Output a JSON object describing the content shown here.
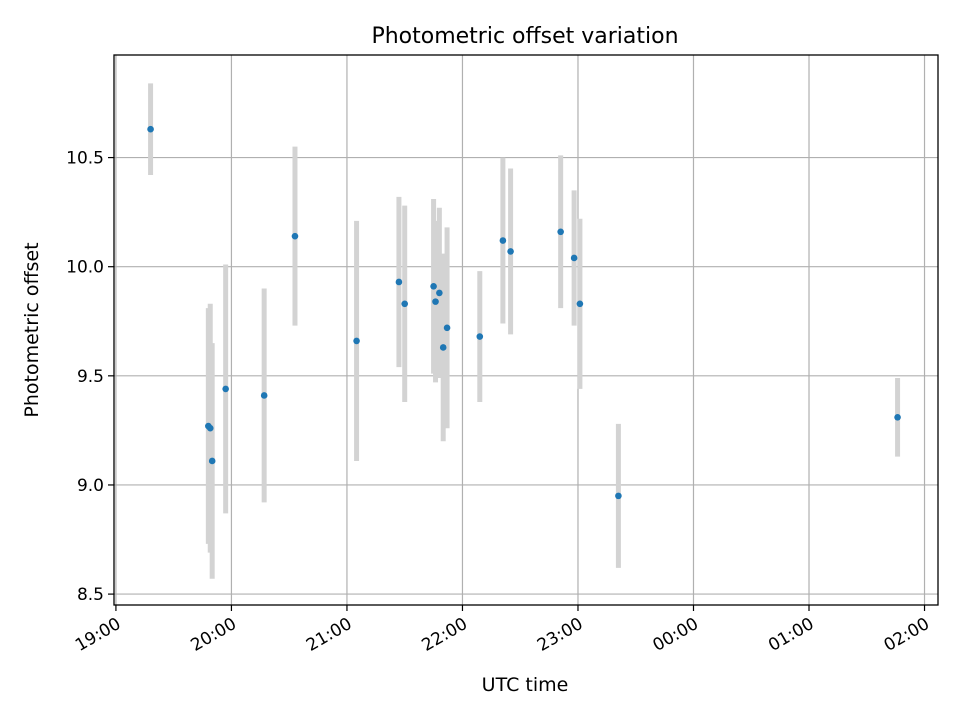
{
  "chart_data": {
    "type": "scatter",
    "title": "Photometric offset variation",
    "xlabel": "UTC time",
    "ylabel": "Photometric offset",
    "x_unit": "UTC time (HH:MM)",
    "xlim": [
      "18:59",
      "26:07"
    ],
    "ylim": [
      8.45,
      10.97
    ],
    "xticks": [
      {
        "time": "19:00",
        "label": "19:00"
      },
      {
        "time": "20:00",
        "label": "20:00"
      },
      {
        "time": "21:00",
        "label": "21:00"
      },
      {
        "time": "22:00",
        "label": "22:00"
      },
      {
        "time": "23:00",
        "label": "23:00"
      },
      {
        "time": "24:00",
        "label": "00:00"
      },
      {
        "time": "25:00",
        "label": "01:00"
      },
      {
        "time": "26:00",
        "label": "02:00"
      }
    ],
    "yticks": [
      8.5,
      9.0,
      9.5,
      10.0,
      10.5
    ],
    "yticklabels": [
      "8.5",
      "9.0",
      "9.5",
      "10.0",
      "10.5"
    ],
    "grid": true,
    "marker_color": "#1f77b4",
    "errorbar_color": "#d3d3d3",
    "series": [
      {
        "points": [
          {
            "x": "19:18",
            "y": 10.63,
            "err": 0.21
          },
          {
            "x": "19:48",
            "y": 9.27,
            "err": 0.54
          },
          {
            "x": "19:49",
            "y": 9.26,
            "err": 0.57
          },
          {
            "x": "19:50",
            "y": 9.11,
            "err": 0.54
          },
          {
            "x": "19:57",
            "y": 9.44,
            "err": 0.57
          },
          {
            "x": "20:17",
            "y": 9.41,
            "err": 0.49
          },
          {
            "x": "20:33",
            "y": 10.14,
            "err": 0.41
          },
          {
            "x": "21:05",
            "y": 9.66,
            "err": 0.55
          },
          {
            "x": "21:27",
            "y": 9.93,
            "err": 0.39
          },
          {
            "x": "21:30",
            "y": 9.83,
            "err": 0.45
          },
          {
            "x": "21:45",
            "y": 9.91,
            "err": 0.4
          },
          {
            "x": "21:46",
            "y": 9.84,
            "err": 0.37
          },
          {
            "x": "21:48",
            "y": 9.88,
            "err": 0.39
          },
          {
            "x": "21:50",
            "y": 9.63,
            "err": 0.43
          },
          {
            "x": "21:52",
            "y": 9.72,
            "err": 0.46
          },
          {
            "x": "22:09",
            "y": 9.68,
            "err": 0.3
          },
          {
            "x": "22:21",
            "y": 10.12,
            "err": 0.38
          },
          {
            "x": "22:25",
            "y": 10.07,
            "err": 0.38
          },
          {
            "x": "22:51",
            "y": 10.16,
            "err": 0.35
          },
          {
            "x": "22:58",
            "y": 10.04,
            "err": 0.31
          },
          {
            "x": "23:01",
            "y": 9.83,
            "err": 0.39
          },
          {
            "x": "23:21",
            "y": 8.95,
            "err": 0.33
          },
          {
            "x": "25:46",
            "y": 9.31,
            "err": 0.18
          }
        ]
      }
    ]
  }
}
